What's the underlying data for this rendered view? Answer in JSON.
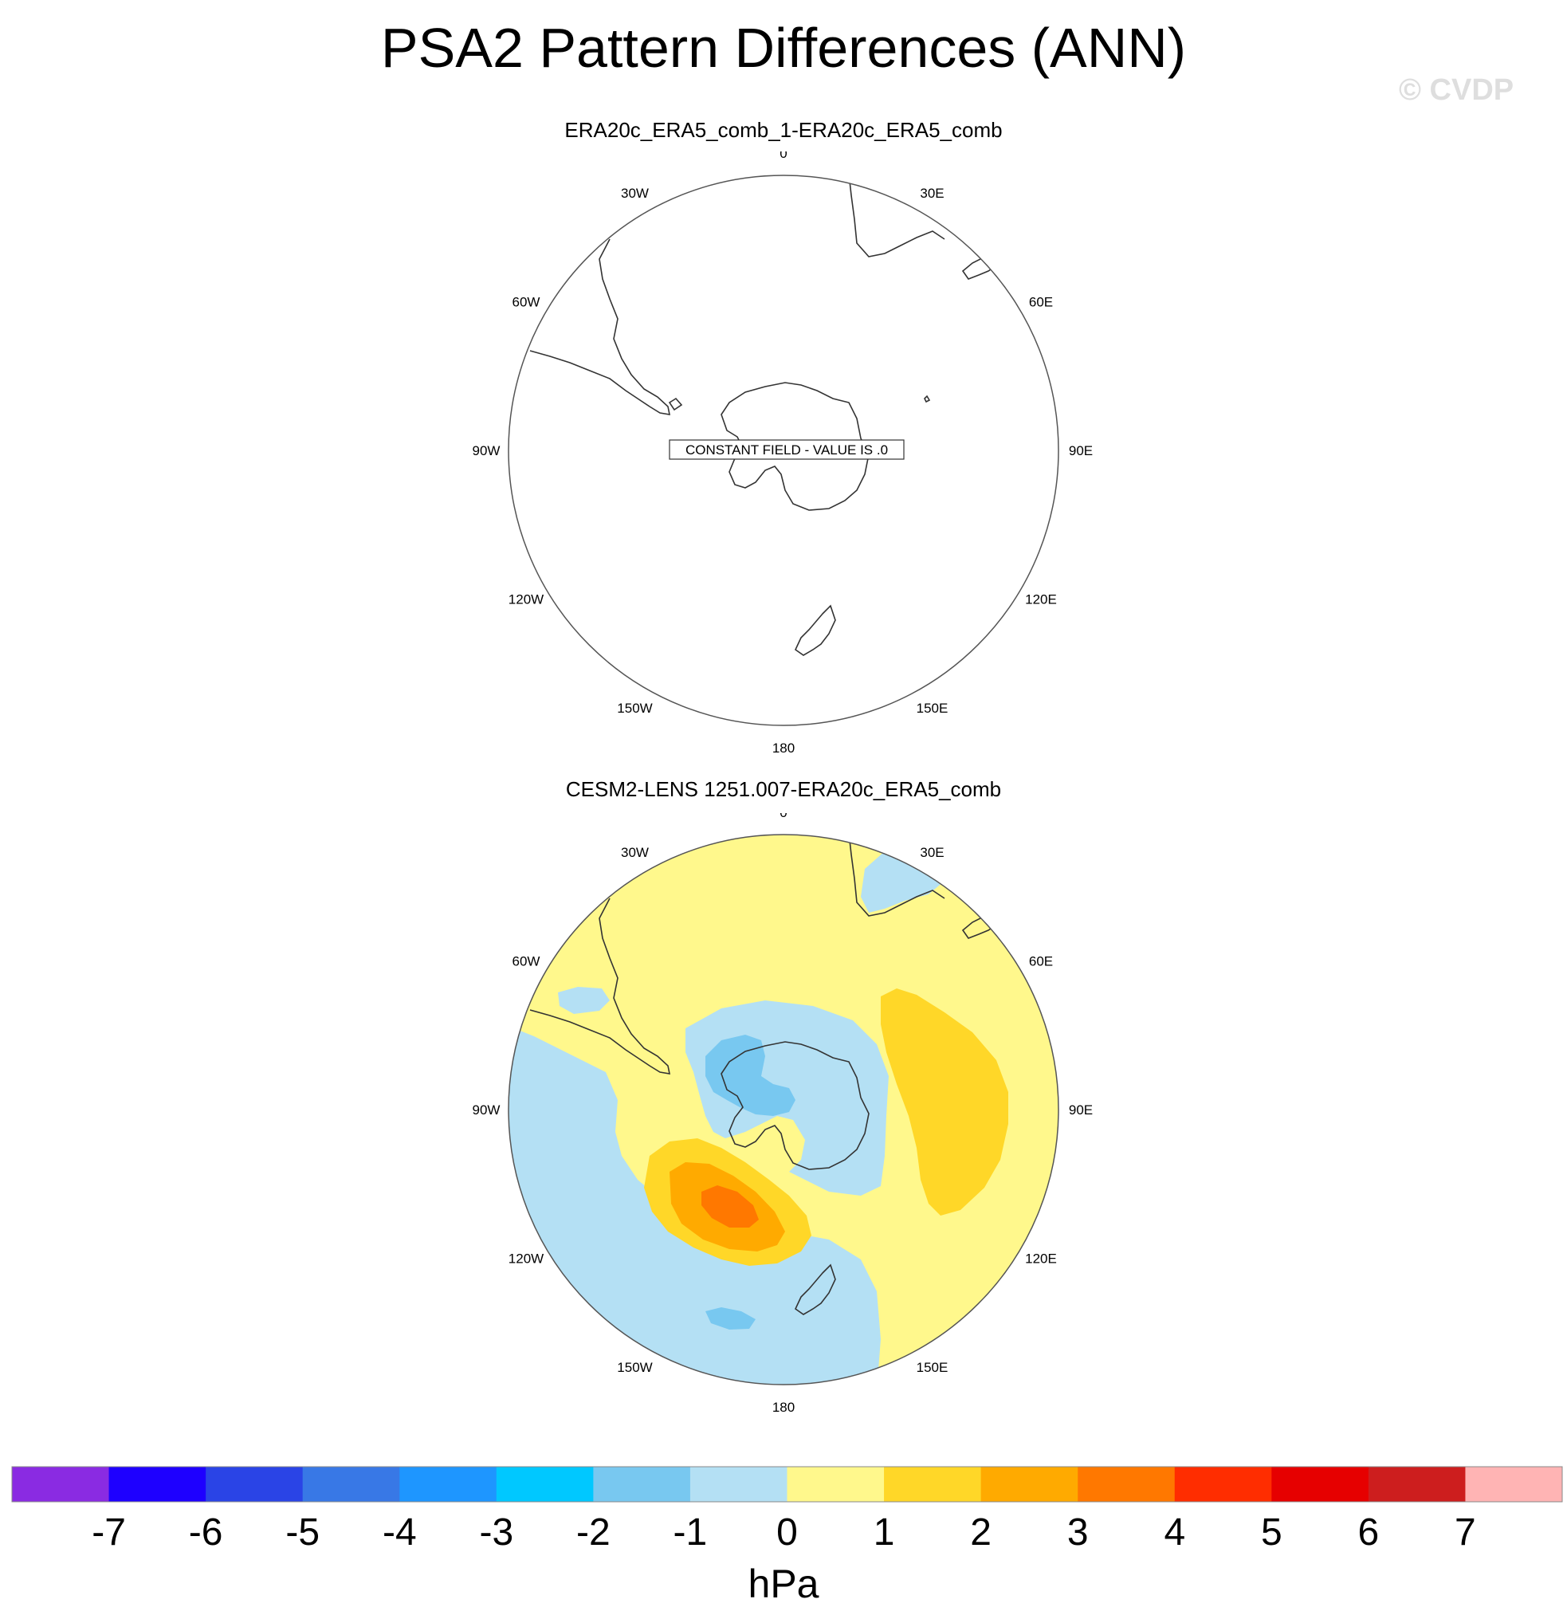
{
  "title": "PSA2 Pattern Differences (ANN)",
  "watermark": "© CVDP",
  "colors": {
    "land_outline": "#333333",
    "map_border": "#555555"
  },
  "chart_data": [
    {
      "type": "polar-contour-map",
      "title": "ERA20c_ERA5_comb_1-ERA20c_ERA5_comb",
      "projection": "south polar stereographic",
      "longitude_labels": [
        "0",
        "30E",
        "60E",
        "90E",
        "120E",
        "150E",
        "180",
        "150W",
        "120W",
        "90W",
        "60W",
        "30W"
      ],
      "annotation": "CONSTANT FIELD - VALUE IS .0",
      "field_min": 0,
      "field_max": 0
    },
    {
      "type": "polar-contour-map",
      "title": "CESM2-LENS 1251.007-ERA20c_ERA5_comb",
      "projection": "south polar stereographic",
      "longitude_labels": [
        "0",
        "30E",
        "60E",
        "90E",
        "120E",
        "150E",
        "180",
        "150W",
        "120W",
        "90W",
        "60W",
        "30W"
      ],
      "background_range": [
        0,
        1
      ],
      "features": [
        {
          "feature": "positive anomaly maximum",
          "sector": "Pacific, 60W-120W",
          "peak_range": [
            3,
            4
          ]
        },
        {
          "feature": "positive anomaly",
          "sector": "Indian Ocean, 60E-100E",
          "peak_range": [
            1,
            2
          ]
        },
        {
          "feature": "negative anomaly",
          "sector": "Antarctica / Weddell Sea",
          "peak_range": [
            -2,
            -1
          ]
        },
        {
          "feature": "negative anomaly",
          "sector": "Pacific, near 150W-180",
          "peak_range": [
            -2,
            -1
          ]
        },
        {
          "feature": "negative anomaly",
          "sector": "90W-150W and 180 band",
          "peak_range": [
            -1,
            0
          ]
        }
      ]
    }
  ],
  "colorbar": {
    "levels": [
      "-7",
      "-6",
      "-5",
      "-4",
      "-3",
      "-2",
      "-1",
      "0",
      "1",
      "2",
      "3",
      "4",
      "5",
      "6",
      "7"
    ],
    "colors": [
      "#8a2be2",
      "#1e00ff",
      "#2a44e6",
      "#3878e6",
      "#1e96ff",
      "#00c8ff",
      "#78c8f0",
      "#b4e0f4",
      "#fff88c",
      "#ffd728",
      "#ffaa00",
      "#ff7800",
      "#ff2d00",
      "#e60000",
      "#cd1e1e",
      "#ffb4b4"
    ],
    "units": "hPa"
  }
}
